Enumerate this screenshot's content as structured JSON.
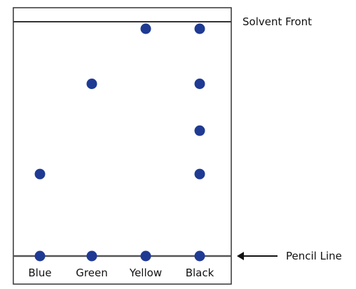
{
  "labels": {
    "solvent_front": "Solvent Front",
    "pencil_line": "Pencil Line"
  },
  "colors": {
    "spot": "#1f3a93",
    "line": "#555555",
    "frame": "#333333"
  },
  "lanes": [
    {
      "name": "Blue",
      "spots": [
        1.0,
        0.35
      ]
    },
    {
      "name": "Green",
      "spots": [
        1.0,
        0.735
      ]
    },
    {
      "name": "Yellow",
      "spots": [
        1.0,
        0.97
      ]
    },
    {
      "name": "Black",
      "spots": [
        1.0,
        0.35,
        0.535,
        0.735,
        0.97
      ]
    }
  ]
}
